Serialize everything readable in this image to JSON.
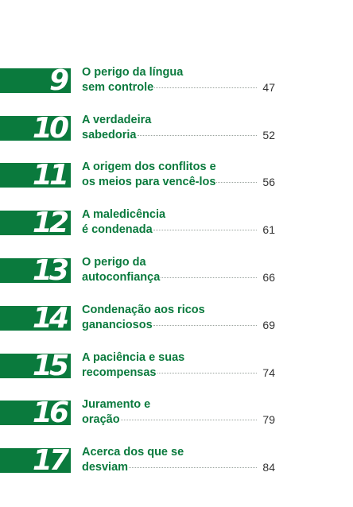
{
  "entries": [
    {
      "number": "9",
      "line1": "O perigo da língua",
      "line2": "sem controle",
      "page": "47"
    },
    {
      "number": "10",
      "line1": "A verdadeira",
      "line2": "sabedoria",
      "page": "52"
    },
    {
      "number": "11",
      "line1": "A origem dos conflitos e",
      "line2": "os meios para vencê-los",
      "page": "56"
    },
    {
      "number": "12",
      "line1": "A maledicência",
      "line2": "é condenada",
      "page": "61"
    },
    {
      "number": "13",
      "line1": "O perigo da",
      "line2": "autoconfiança",
      "page": "66"
    },
    {
      "number": "14",
      "line1": "Condenação aos ricos",
      "line2": "gananciosos",
      "page": "69"
    },
    {
      "number": "15",
      "line1": "A paciência e suas",
      "line2": "recompensas",
      "page": "74"
    },
    {
      "number": "16",
      "line1": "Juramento e",
      "line2": "oração",
      "page": "79"
    },
    {
      "number": "17",
      "line1": "Acerca dos que se",
      "line2": "desviam",
      "page": "84"
    }
  ],
  "colors": {
    "accent": "#0a7a3d",
    "page_number": "#333333"
  }
}
